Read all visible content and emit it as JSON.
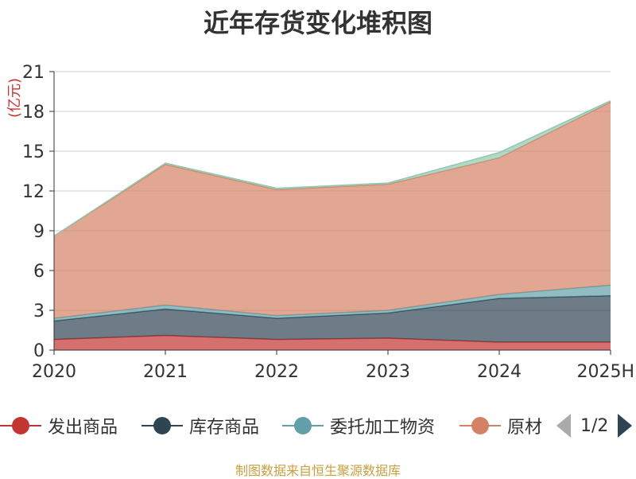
{
  "chart_data": {
    "type": "area",
    "stacked": true,
    "title": "近年存货变化堆积图",
    "unit_label": "(亿元)",
    "categories": [
      "2020",
      "2021",
      "2022",
      "2023",
      "2024",
      "2025H"
    ],
    "ylim": [
      0,
      21
    ],
    "yticks": [
      0,
      3,
      6,
      9,
      12,
      15,
      18,
      21
    ],
    "grid": true,
    "legend_position": "bottom",
    "series": [
      {
        "name": "发出商品",
        "color": "#c23531",
        "values": [
          0.8,
          1.1,
          0.8,
          0.9,
          0.6,
          0.6
        ]
      },
      {
        "name": "库存商品",
        "color": "#2f4554",
        "values": [
          1.4,
          2.0,
          1.6,
          1.9,
          3.3,
          3.5
        ]
      },
      {
        "name": "委托加工物资",
        "color": "#61a0a8",
        "values": [
          0.2,
          0.3,
          0.2,
          0.2,
          0.3,
          0.8
        ]
      },
      {
        "name": "原材料",
        "color": "#d48265",
        "values": [
          6.2,
          10.6,
          9.5,
          9.5,
          10.3,
          13.8
        ]
      },
      {
        "name": "",
        "color": "#91c7ae",
        "values": [
          0.0,
          0.1,
          0.1,
          0.1,
          0.4,
          0.1
        ]
      }
    ]
  },
  "legend": {
    "visible_labels": [
      "发出商品",
      "库存商品",
      "委托加工物资",
      "原材"
    ],
    "page_indicator": "1/2"
  },
  "source_text": "制图数据来自恒生聚源数据库"
}
